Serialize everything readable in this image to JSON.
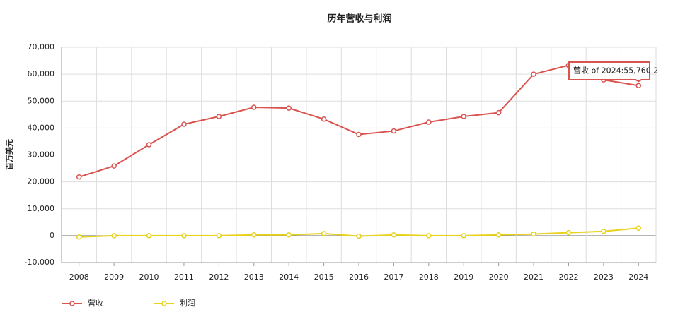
{
  "chart_data": {
    "type": "line",
    "title": "历年营收与利润",
    "y_label": "百万美元",
    "categories": [
      "2008",
      "2009",
      "2010",
      "2011",
      "2012",
      "2013",
      "2014",
      "2015",
      "2016",
      "2017",
      "2018",
      "2019",
      "2020",
      "2021",
      "2022",
      "2023",
      "2024"
    ],
    "series": [
      {
        "name": "营收",
        "color": "#d9534f",
        "values": [
          21800,
          25900,
          33800,
          41400,
          44300,
          47700,
          47400,
          43300,
          37600,
          38900,
          42200,
          44300,
          45700,
          60000,
          63300,
          57900,
          55760.2
        ]
      },
      {
        "name": "利润",
        "color": "#e8d21d",
        "values": [
          -500,
          0,
          0,
          0,
          0,
          300,
          300,
          800,
          -200,
          300,
          0,
          0,
          300,
          600,
          1100,
          1600,
          2800
        ]
      }
    ],
    "ylim": [
      -10000,
      70000
    ],
    "yticks": [
      {
        "value": -10000,
        "label": "-10,000"
      },
      0,
      {
        "value": 10000,
        "label": "10,000"
      },
      {
        "value": 20000,
        "label": "20,000"
      },
      {
        "value": 30000,
        "label": "30,000"
      },
      {
        "value": 40000,
        "label": "40,000"
      },
      {
        "value": 50000,
        "label": "50,000"
      },
      {
        "value": 60000,
        "label": "60,000"
      },
      {
        "value": 70000,
        "label": "70,000"
      }
    ],
    "grid": true,
    "legend": "bottom-left",
    "tooltip": "营收 of 2024:55,760.2"
  }
}
